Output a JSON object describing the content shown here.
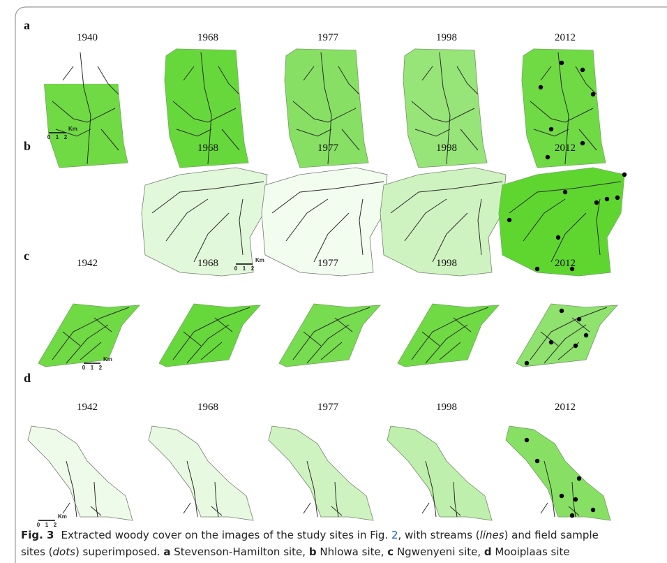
{
  "panels": [
    {
      "label": "a",
      "years": [
        "1940",
        "1968",
        "1977",
        "1998",
        "2012"
      ],
      "scale": {
        "unit": "Km",
        "ticks": [
          "0",
          "1",
          "2"
        ]
      }
    },
    {
      "label": "b",
      "years": [
        "1968",
        "1977",
        "1998",
        "2012"
      ],
      "scale": {
        "unit": "Km",
        "ticks": [
          "0",
          "1",
          "2"
        ]
      }
    },
    {
      "label": "c",
      "years": [
        "1942",
        "1968",
        "1977",
        "1998",
        "2012"
      ],
      "scale": {
        "unit": "Km",
        "ticks": [
          "0",
          "1",
          "2"
        ]
      }
    },
    {
      "label": "d",
      "years": [
        "1942",
        "1968",
        "1977",
        "1998",
        "2012"
      ],
      "scale": {
        "unit": "Km",
        "ticks": [
          "0",
          "1",
          "2"
        ]
      }
    }
  ],
  "caption": {
    "figure": "Fig. 3",
    "line1": [
      "Extracted woody cover on the images of the study sites in Fig. ",
      "2",
      ", with streams (",
      "lines",
      ") and field sample"
    ],
    "line2": [
      "sites (",
      "dots",
      ") superimposed. ",
      "a",
      " Stevenson-Hamilton site, ",
      "b",
      " Nhlowa site, ",
      "c",
      " Ngwenyeni site, ",
      "d",
      " Mooiplaas site"
    ]
  }
}
